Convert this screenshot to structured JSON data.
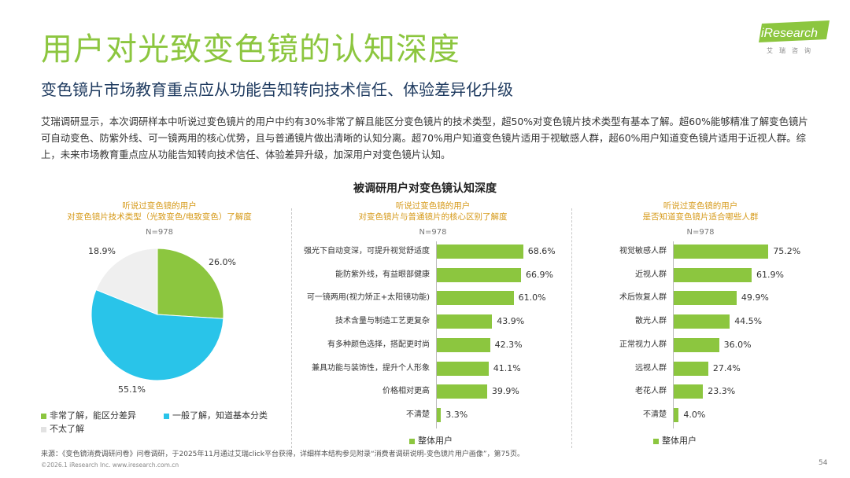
{
  "header": {
    "title": "用户对光致变色镜的认知深度",
    "subtitle": "变色镜片市场教育重点应从功能告知转向技术信任、体验差异化升级",
    "intro": "艾瑞调研显示，本次调研样本中听说过变色镜片的用户中约有30%非常了解且能区分变色镜片的技术类型，超50%对变色镜片技术类型有基本了解。超60%能够精准了解变色镜片可自动变色、防紫外线、可一镜两用的核心优势，且与普通镜片做出清晰的认知分离。超70%用户知道变色镜片适用于视敏感人群，超60%用户知道变色镜片适用于近视人群。综上，未来市场教育重点应从功能告知转向技术信任、体验差异升级，加深用户对变色镜片认知。"
  },
  "logo": {
    "text": "iResearch",
    "sub": "艾瑞咨询"
  },
  "colors": {
    "accent": "#8cc63f",
    "cyan": "#29c4e9",
    "light": "#efefef",
    "title_green": "#8cc63f",
    "subtitle_navy": "#1e3a5f",
    "panel_title": "#d69a1a"
  },
  "chart_title": "被调研用户对变色镜认知深度",
  "chart_data": [
    {
      "type": "pie",
      "title": "听说过变色镜的用户\n对变色镜片技术类型（光致变色/电致变色）了解度",
      "title_lines": [
        "听说过变色镜的用户",
        "对变色镜片技术类型（光致变色/电致变色）了解度"
      ],
      "n": "N=978",
      "slices": [
        {
          "name": "非常了解，能区分差异",
          "value": 26.0,
          "label": "26.0%",
          "color": "#8cc63f"
        },
        {
          "name": "一般了解，知道基本分类",
          "value": 55.1,
          "label": "55.1%",
          "color": "#29c4e9"
        },
        {
          "name": "不太了解",
          "value": 18.9,
          "label": "18.9%",
          "color": "#efefef"
        }
      ],
      "legend_placement": "bottom"
    },
    {
      "type": "bar",
      "orientation": "horizontal",
      "title": "听说过变色镜的用户\n对变色镜片与普通镜片的核心区别了解度",
      "title_lines": [
        "听说过变色镜的用户",
        "对变色镜片与普通镜片的核心区别了解度"
      ],
      "n": "N=978",
      "categories": [
        "强光下自动变深，可提升视觉舒适度",
        "能防紫外线，有益眼部健康",
        "可一镜两用(视力矫正+太阳镜功能)",
        "技术含量与制造工艺更复杂",
        "有多种颜色选择，搭配更时尚",
        "兼具功能与装饰性，提升个人形象",
        "价格相对更高",
        "不清楚"
      ],
      "series": [
        {
          "name": "整体用户",
          "values": [
            68.6,
            66.9,
            61.0,
            43.9,
            42.3,
            41.1,
            39.9,
            3.3
          ]
        }
      ],
      "value_labels": [
        "68.6%",
        "66.9%",
        "61.0%",
        "43.9%",
        "42.3%",
        "41.1%",
        "39.9%",
        "3.3%"
      ],
      "xlim": [
        0,
        100
      ],
      "legend_placement": "bottom"
    },
    {
      "type": "bar",
      "orientation": "horizontal",
      "title": "听说过变色镜的用户\n是否知道变色镜片适合哪些人群",
      "title_lines": [
        "听说过变色镜的用户",
        "是否知道变色镜片适合哪些人群"
      ],
      "n": "N=978",
      "categories": [
        "视觉敏感人群",
        "近视人群",
        "术后恢复人群",
        "散光人群",
        "正常视力人群",
        "远视人群",
        "老花人群",
        "不清楚"
      ],
      "series": [
        {
          "name": "整体用户",
          "values": [
            75.2,
            61.9,
            49.9,
            44.5,
            36.0,
            27.4,
            23.3,
            4.0
          ]
        }
      ],
      "value_labels": [
        "75.2%",
        "61.9%",
        "49.9%",
        "44.5%",
        "36.0%",
        "27.4%",
        "23.3%",
        "4.0%"
      ],
      "xlim": [
        0,
        100
      ],
      "legend_placement": "bottom"
    }
  ],
  "footer": {
    "source": "来源：《变色镜消费调研问卷》问卷调研，于2025年11月通过艾瑞click平台获得，详细样本结构参见附录“消费者调研说明-变色镜片用户画像”，第75页。",
    "copyright": "©2026.1 iResearch Inc.                         www.iresearch.com.cn",
    "page": "54"
  }
}
